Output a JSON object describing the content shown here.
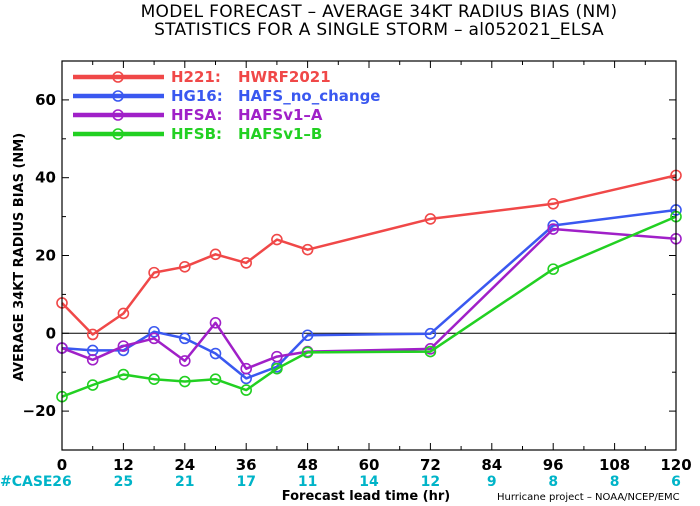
{
  "chart_data": {
    "type": "line",
    "title_line1": "MODEL FORECAST – AVERAGE 34KT RADIUS BIAS (NM)",
    "title_line2": "STATISTICS FOR A SINGLE STORM – al052021_ELSA",
    "xlabel": "Forecast lead time (hr)",
    "ylabel": "AVERAGE 34KT RADIUS BIAS (NM)",
    "xlim": [
      0,
      120
    ],
    "ylim": [
      -30,
      70
    ],
    "x_ticks": [
      "0",
      "12",
      "24",
      "36",
      "48",
      "60",
      "72",
      "84",
      "96",
      "108",
      "120"
    ],
    "y_ticks": [
      "−20",
      "0",
      "20",
      "40",
      "60"
    ],
    "zero_line": true,
    "grid": false,
    "legend_position": "top-left",
    "case_row": {
      "label": "#CASE",
      "values": [
        "26",
        "25",
        "21",
        "17",
        "11",
        "14",
        "12",
        "9",
        "8",
        "8",
        "6"
      ],
      "color": "#00b4c8"
    },
    "credit": "Hurricane project – NOAA/NCEP/EMC",
    "series": [
      {
        "name": "H221:",
        "desc": "HWRF2021",
        "color": "#f04848",
        "x": [
          0,
          6,
          12,
          18,
          24,
          30,
          36,
          42,
          48,
          72,
          96,
          120
        ],
        "y": [
          7.8,
          -0.3,
          5.1,
          15.6,
          17.1,
          20.3,
          18.1,
          24.1,
          21.5,
          29.4,
          33.3,
          40.6
        ]
      },
      {
        "name": "HG16:",
        "desc": "HAFS_no_change",
        "color": "#3a58f0",
        "x": [
          0,
          6,
          12,
          18,
          24,
          30,
          36,
          42,
          48,
          72,
          96,
          120
        ],
        "y": [
          -3.8,
          -4.4,
          -4.4,
          0.4,
          -1.3,
          -5.2,
          -11.6,
          -8.6,
          -0.5,
          -0.1,
          27.7,
          31.7
        ]
      },
      {
        "name": "HFSA:",
        "desc": "HAFSv1–A",
        "color": "#a020c8",
        "x": [
          0,
          6,
          12,
          18,
          24,
          30,
          36,
          42,
          48,
          72,
          96,
          120
        ],
        "y": [
          -3.8,
          -6.8,
          -3.3,
          -1.3,
          -7.1,
          2.7,
          -9.1,
          -6.0,
          -4.7,
          -4.0,
          26.8,
          24.3
        ]
      },
      {
        "name": "HFSB:",
        "desc": "HAFSv1–B",
        "color": "#22d022",
        "x": [
          0,
          6,
          12,
          18,
          24,
          30,
          36,
          42,
          48,
          72,
          96,
          120
        ],
        "y": [
          -16.3,
          -13.3,
          -10.6,
          -11.8,
          -12.4,
          -11.8,
          -14.6,
          -9.1,
          -4.9,
          -4.7,
          16.5,
          30.0
        ]
      }
    ]
  }
}
